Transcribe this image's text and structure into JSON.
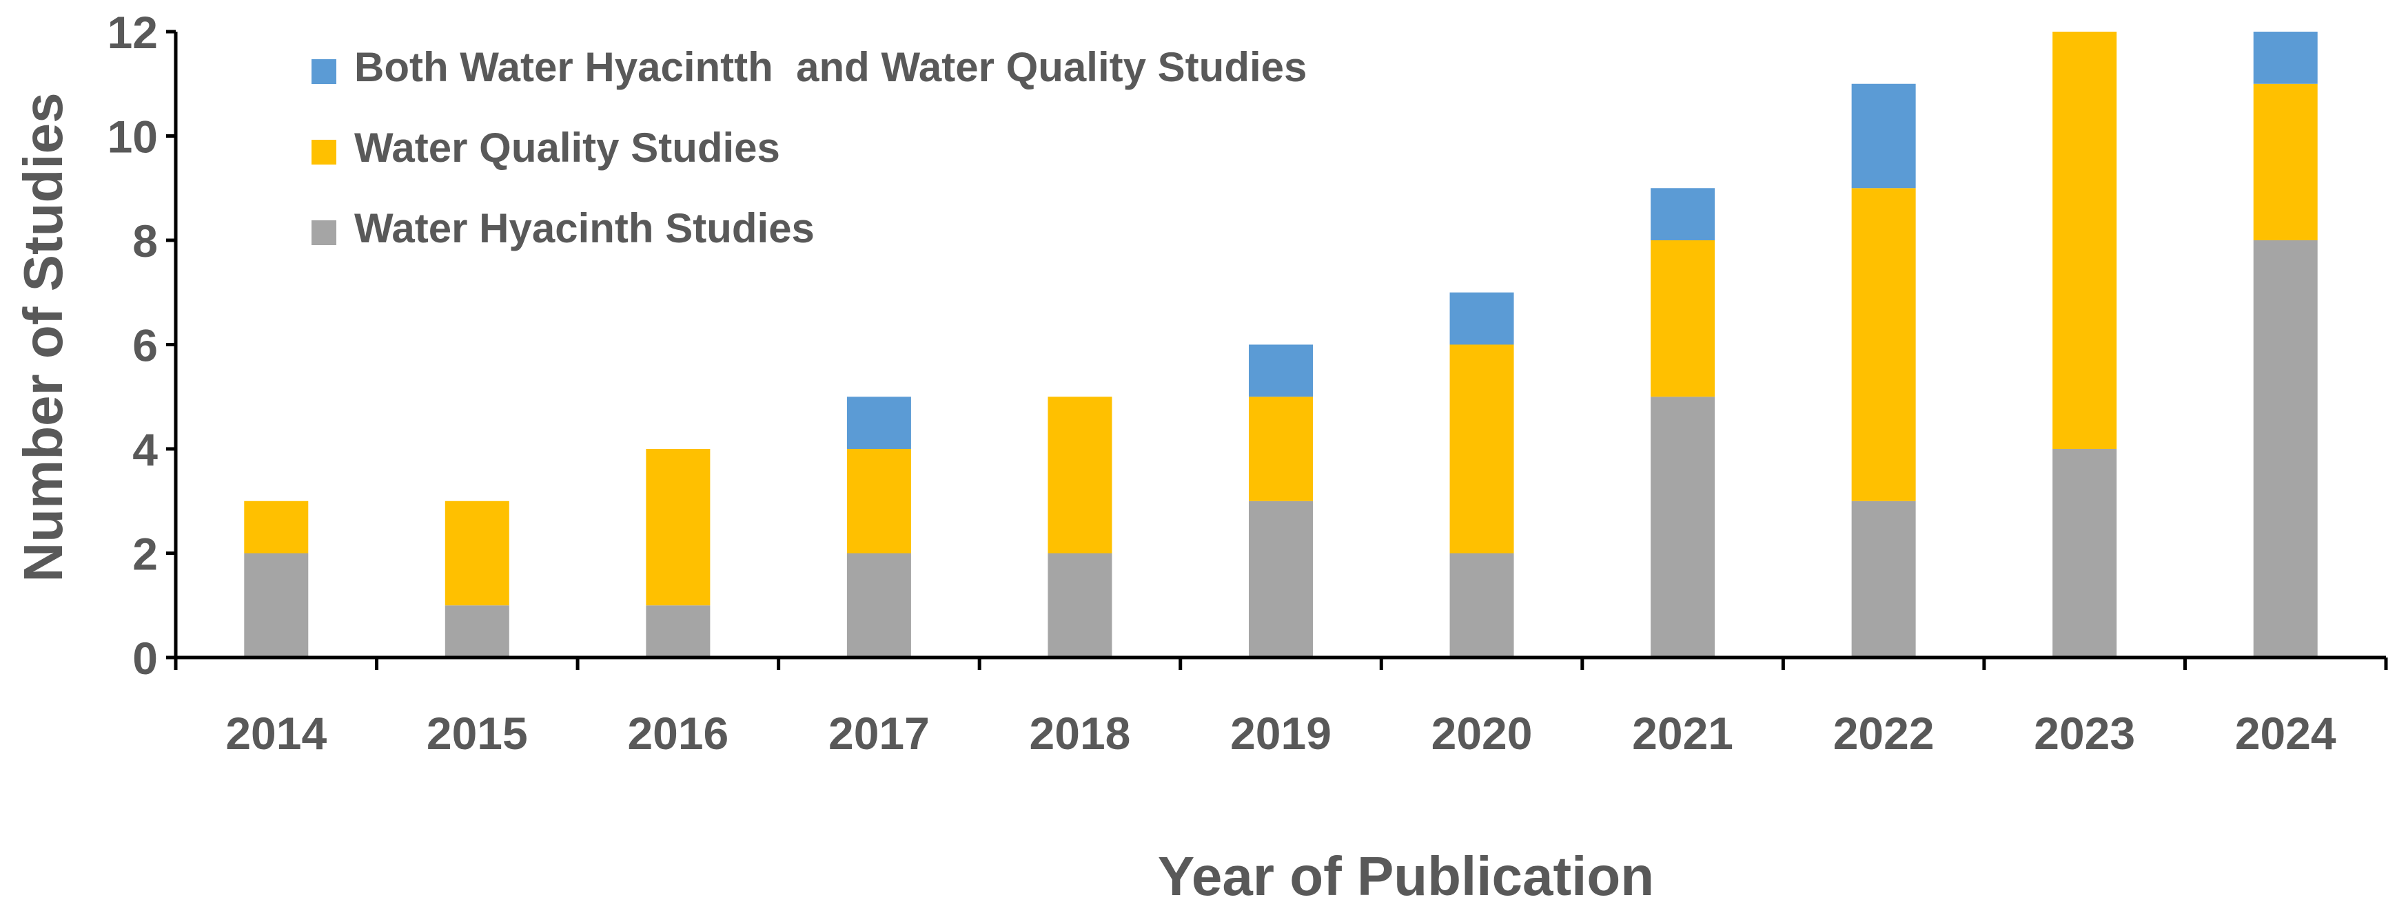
{
  "chart_data": {
    "type": "bar",
    "stacked": true,
    "title": "",
    "xlabel": "Year of Publication",
    "ylabel": "Number of Studies",
    "ylim": [
      0,
      12
    ],
    "yticks": [
      0,
      2,
      4,
      6,
      8,
      10,
      12
    ],
    "grid": false,
    "legend_position": "top-left",
    "categories": [
      "2014",
      "2015",
      "2016",
      "2017",
      "2018",
      "2019",
      "2020",
      "2021",
      "2022",
      "2023",
      "2024"
    ],
    "series": [
      {
        "name": "Water Hyacinth Studies",
        "color": "#A5A5A5",
        "values": [
          2,
          1,
          1,
          2,
          2,
          3,
          2,
          5,
          3,
          4,
          8
        ]
      },
      {
        "name": "Water Quality Studies",
        "color": "#FFC000",
        "values": [
          1,
          2,
          3,
          2,
          3,
          2,
          4,
          3,
          6,
          8,
          3
        ]
      },
      {
        "name": "Both Water Hyacintth  and Water Quality Studies",
        "color": "#5B9BD5",
        "values": [
          0,
          0,
          0,
          1,
          0,
          1,
          1,
          1,
          2,
          0,
          1
        ]
      }
    ],
    "legend_order": [
      2,
      1,
      0
    ]
  }
}
